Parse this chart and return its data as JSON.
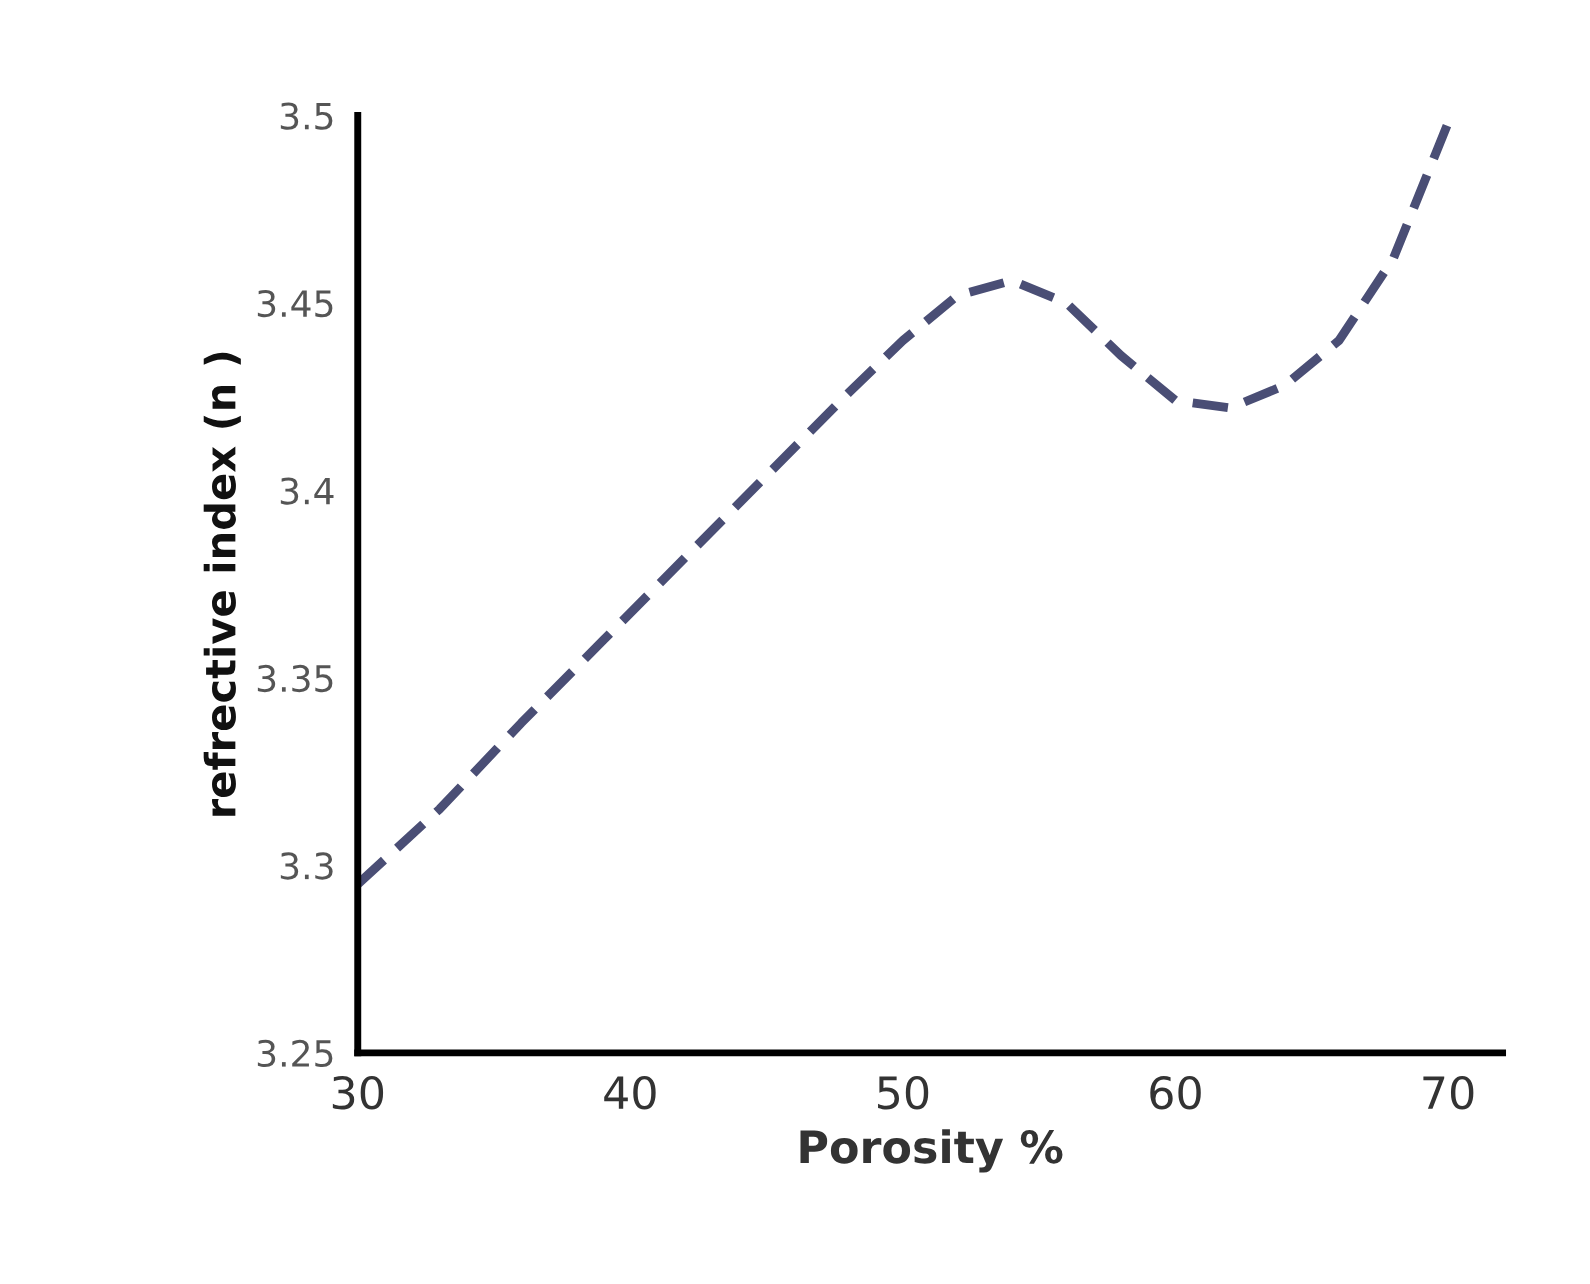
{
  "chart_data": {
    "type": "line",
    "xlabel": "Porosity %",
    "ylabel": "refrective index (n )",
    "xlim": [
      30,
      72
    ],
    "ylim": [
      3.25,
      3.5
    ],
    "xticks": [
      30,
      40,
      50,
      60,
      70
    ],
    "yticks": [
      3.25,
      3.3,
      3.35,
      3.4,
      3.45,
      3.5
    ],
    "grid": false,
    "line_style": "dashed",
    "marker": "none",
    "series": [
      {
        "color": "#4a4e75",
        "x": [
          30,
          33,
          36,
          39,
          42,
          45,
          48,
          50,
          52,
          54,
          56,
          58,
          60,
          62,
          64,
          66,
          68,
          70
        ],
        "values": [
          3.295,
          3.315,
          3.338,
          3.36,
          3.382,
          3.404,
          3.426,
          3.44,
          3.452,
          3.456,
          3.45,
          3.436,
          3.424,
          3.422,
          3.428,
          3.44,
          3.462,
          3.498
        ]
      }
    ]
  }
}
